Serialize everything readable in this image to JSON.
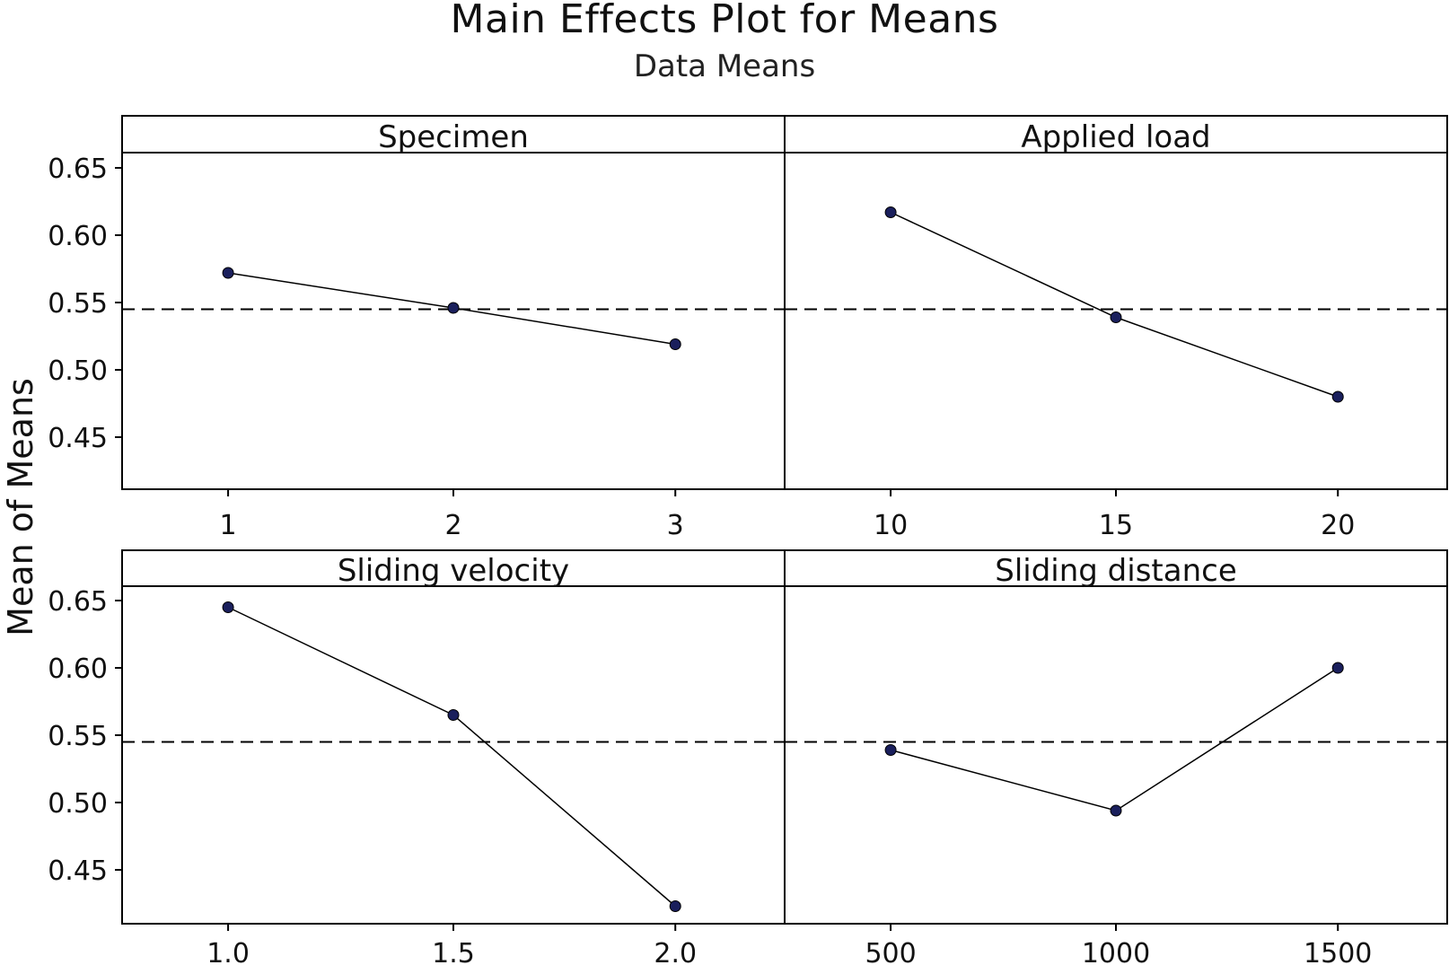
{
  "chart_data": {
    "type": "line",
    "title": "Main Effects Plot for Means",
    "subtitle": "Data Means",
    "ylabel": "Mean of Means",
    "ylim": [
      0.41,
      0.66
    ],
    "yticks": [
      "0.45",
      "0.50",
      "0.55",
      "0.60",
      "0.65"
    ],
    "reference_mean": 0.545,
    "grid": false,
    "marker_color": "#1a1f5c",
    "line_color": "#000000",
    "panels": [
      {
        "name": "Specimen",
        "x": [
          "1",
          "2",
          "3"
        ],
        "values": [
          0.572,
          0.546,
          0.519
        ]
      },
      {
        "name": "Applied load",
        "x": [
          "10",
          "15",
          "20"
        ],
        "values": [
          0.617,
          0.539,
          0.48
        ]
      },
      {
        "name": "Sliding velocity",
        "x": [
          "1.0",
          "1.5",
          "2.0"
        ],
        "values": [
          0.645,
          0.565,
          0.423
        ]
      },
      {
        "name": "Sliding distance",
        "x": [
          "500",
          "1000",
          "1500"
        ],
        "values": [
          0.539,
          0.494,
          0.6
        ]
      }
    ]
  }
}
